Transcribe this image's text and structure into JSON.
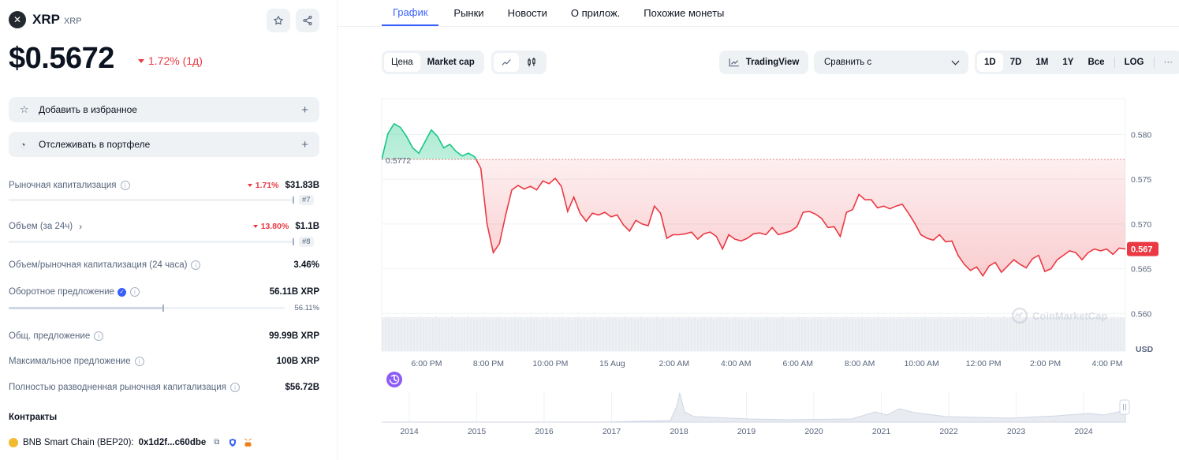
{
  "coin": {
    "name": "XRP",
    "symbol": "XRP",
    "logo_glyph": "✕",
    "price": "$0.5672",
    "change": "1.72% (1д)",
    "change_color": "#ea3943"
  },
  "actions": {
    "favorite_label": "Добавить в избранное",
    "portfolio_label": "Отслеживать в портфеле"
  },
  "stats": {
    "market_cap": {
      "label": "Рыночная капитализация",
      "change": "1.71%",
      "value": "$31.83B",
      "rank": "#7"
    },
    "volume": {
      "label": "Объем (за 24ч)",
      "change": "13.80%",
      "value": "$1.1B",
      "rank": "#8"
    },
    "vol_mcap": {
      "label": "Объем/рыночная капитализация (24 часа)",
      "value": "3.46%"
    },
    "circulating": {
      "label": "Оборотное предложение",
      "value": "56.11B XRP",
      "percent_text": "56.11%",
      "percent": 56.11
    },
    "total_supply": {
      "label": "Общ. предложение",
      "value": "99.99B XRP"
    },
    "max_supply": {
      "label": "Максимальное предложение",
      "value": "100B XRP"
    },
    "fdv": {
      "label": "Полностью разводненная рыночная капитализация",
      "value": "$56.72B"
    }
  },
  "contracts": {
    "title": "Контракты",
    "chain": "BNB Smart Chain (BEP20):",
    "address": "0x1d2f...c60dbe"
  },
  "tabs": [
    "График",
    "Рынки",
    "Новости",
    "О прилож.",
    "Похожие монеты"
  ],
  "toolbar": {
    "price_label": "Цена",
    "mcap_label": "Market cap",
    "tradingview_label": "TradingView",
    "compare_label": "Сравнить с",
    "ranges": [
      "1D",
      "7D",
      "1M",
      "1Y",
      "Все"
    ],
    "log_label": "LOG",
    "more_label": "···"
  },
  "chart_data": {
    "type": "line",
    "series_color_up": "#16c784",
    "series_color_down": "#ea3943",
    "baseline": 0.5772,
    "baseline_label": "0.5772",
    "current_label": "0.567",
    "ylim": [
      0.558,
      0.584
    ],
    "yticks": [
      "0.580",
      "0.575",
      "0.570",
      "0.565",
      "0.560"
    ],
    "ylabel": "USD",
    "xticks": [
      "6:00 PM",
      "8:00 PM",
      "10:00 PM",
      "15 Aug",
      "2:00 AM",
      "4:00 AM",
      "6:00 AM",
      "8:00 AM",
      "10:00 AM",
      "12:00 PM",
      "2:00 PM",
      "4:00 PM"
    ],
    "x_hours": [
      0.0,
      0.2,
      0.4,
      0.6,
      0.8,
      1.0,
      1.2,
      1.4,
      1.6,
      1.8,
      2.0,
      2.2,
      2.4,
      2.6,
      2.8,
      3.0,
      3.2,
      3.4,
      3.6,
      3.8,
      4.0,
      4.2,
      4.4,
      4.6,
      4.8,
      5.0,
      5.2,
      5.4,
      5.6,
      5.8,
      6.0,
      6.2,
      6.4,
      6.6,
      6.8,
      7.0,
      7.2,
      7.4,
      7.6,
      7.8,
      8.0,
      8.2,
      8.4,
      8.6,
      8.8,
      9.0,
      9.2,
      9.4,
      9.6,
      9.8,
      10.0,
      10.2,
      10.4,
      10.6,
      10.8,
      11.0,
      11.2,
      11.4,
      11.6,
      11.8,
      12.0,
      12.2,
      12.4,
      12.6,
      12.8,
      13.0,
      13.2,
      13.4,
      13.6,
      13.8,
      14.0,
      14.2,
      14.4,
      14.6,
      14.8,
      15.0,
      15.2,
      15.4,
      15.6,
      15.8,
      16.0,
      16.2,
      16.4,
      16.6,
      16.8,
      17.0,
      17.2,
      17.4,
      17.6,
      17.8,
      18.0,
      18.2,
      18.4,
      18.6,
      18.8,
      19.0,
      19.2,
      19.4,
      19.6,
      19.8,
      20.0,
      20.2,
      20.4,
      20.6,
      20.8,
      21.0,
      21.2,
      21.4,
      21.6,
      21.8,
      22.0,
      22.2,
      22.4,
      22.6,
      22.8,
      23.0,
      23.2,
      23.4,
      23.6,
      23.8,
      24.0
    ],
    "values": [
      0.5772,
      0.5801,
      0.5812,
      0.5808,
      0.5798,
      0.5785,
      0.5779,
      0.5792,
      0.5805,
      0.5798,
      0.5785,
      0.5789,
      0.5781,
      0.5776,
      0.5779,
      0.5775,
      0.5762,
      0.57,
      0.5668,
      0.5678,
      0.571,
      0.5738,
      0.5743,
      0.5739,
      0.5742,
      0.5738,
      0.5748,
      0.5745,
      0.5751,
      0.5742,
      0.5714,
      0.573,
      0.5712,
      0.5703,
      0.5712,
      0.571,
      0.5713,
      0.5708,
      0.571,
      0.5699,
      0.5692,
      0.5704,
      0.57,
      0.5698,
      0.572,
      0.5712,
      0.5684,
      0.5688,
      0.5688,
      0.5689,
      0.5691,
      0.5683,
      0.5689,
      0.5691,
      0.5686,
      0.5672,
      0.5688,
      0.5683,
      0.5681,
      0.5684,
      0.5689,
      0.569,
      0.5688,
      0.5696,
      0.5688,
      0.569,
      0.5692,
      0.5697,
      0.5713,
      0.5714,
      0.5711,
      0.5706,
      0.5696,
      0.5697,
      0.5686,
      0.5713,
      0.5716,
      0.5733,
      0.5727,
      0.5727,
      0.5718,
      0.572,
      0.5717,
      0.572,
      0.5722,
      0.5712,
      0.5701,
      0.5688,
      0.5684,
      0.5682,
      0.5688,
      0.568,
      0.5681,
      0.5665,
      0.5655,
      0.5648,
      0.5652,
      0.5642,
      0.5653,
      0.5657,
      0.5646,
      0.5653,
      0.566,
      0.5655,
      0.5651,
      0.5661,
      0.5665,
      0.5647,
      0.565,
      0.566,
      0.5665,
      0.567,
      0.5668,
      0.566,
      0.5668,
      0.5672,
      0.567,
      0.5672,
      0.5666,
      0.5673,
      0.5672
    ]
  },
  "overview_chart": {
    "years": [
      "2014",
      "2015",
      "2016",
      "2017",
      "2018",
      "2019",
      "2020",
      "2021",
      "2022",
      "2023",
      "2024"
    ]
  },
  "watermark": "CoinMarketCap"
}
